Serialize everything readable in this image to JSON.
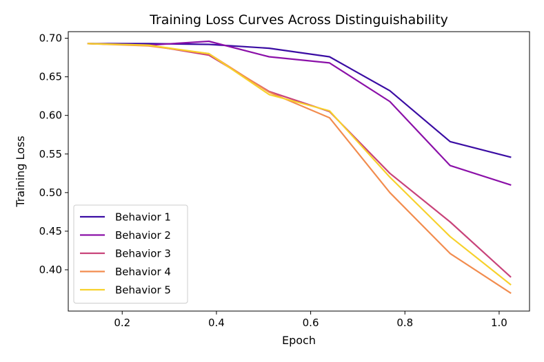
{
  "chart_data": {
    "type": "line",
    "title": "Training Loss Curves Across Distinguishability",
    "xlabel": "Epoch",
    "ylabel": "Training Loss",
    "xlim": [
      0.0855,
      1.0645
    ],
    "ylim": [
      0.3465,
      0.7085
    ],
    "xticks": [
      0.2,
      0.4,
      0.6,
      0.8,
      1.0
    ],
    "xtick_labels": [
      "0.2",
      "0.4",
      "0.6",
      "0.8",
      "1.0"
    ],
    "yticks": [
      0.4,
      0.45,
      0.5,
      0.55,
      0.6,
      0.65,
      0.7
    ],
    "ytick_labels": [
      "0.40",
      "0.45",
      "0.50",
      "0.55",
      "0.60",
      "0.65",
      "0.70"
    ],
    "grid": false,
    "legend_position": "lower-left",
    "x": [
      0.128,
      0.256,
      0.384,
      0.512,
      0.64,
      0.768,
      0.896,
      1.024
    ],
    "series": [
      {
        "name": "Behavior 1",
        "color": "#3a0ca3",
        "values": [
          0.693,
          0.693,
          0.692,
          0.687,
          0.676,
          0.632,
          0.566,
          0.546
        ]
      },
      {
        "name": "Behavior 2",
        "color": "#8b10a8",
        "values": [
          0.693,
          0.691,
          0.696,
          0.676,
          0.668,
          0.618,
          0.535,
          0.51
        ]
      },
      {
        "name": "Behavior 3",
        "color": "#c8437a",
        "values": [
          0.693,
          0.691,
          0.678,
          0.631,
          0.605,
          0.525,
          0.462,
          0.391
        ]
      },
      {
        "name": "Behavior 4",
        "color": "#f28c4e",
        "values": [
          0.693,
          0.69,
          0.68,
          0.63,
          0.597,
          0.5,
          0.421,
          0.37
        ]
      },
      {
        "name": "Behavior 5",
        "color": "#f7d12b",
        "values": [
          0.693,
          0.691,
          0.68,
          0.627,
          0.606,
          0.52,
          0.443,
          0.381
        ]
      }
    ]
  }
}
